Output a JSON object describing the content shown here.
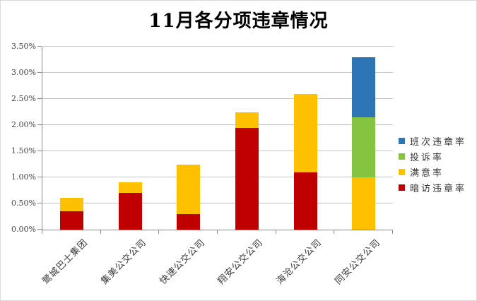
{
  "title": "11月各分项违章情况",
  "chart_data": {
    "type": "bar",
    "stacked": true,
    "title": "11月各分项违章情况",
    "xlabel": "",
    "ylabel": "",
    "grid": true,
    "ylim": [
      0,
      3.5
    ],
    "ytick_step": 0.5,
    "ytick_labels": [
      "0.00%",
      "0.50%",
      "1.00%",
      "1.50%",
      "2.00%",
      "2.50%",
      "3.00%",
      "3.50%"
    ],
    "categories": [
      "鹭城巴士集团",
      "集美公交公司",
      "快速公交公司",
      "翔安公交公司",
      "海沧公交公司",
      "同安公交公司"
    ],
    "series": [
      {
        "name": "暗访违章率",
        "color": "#C00000",
        "values": [
          0.35,
          0.7,
          0.3,
          1.95,
          1.1,
          0
        ]
      },
      {
        "name": "满意率",
        "color": "#FFC000",
        "values": [
          0.25,
          0.2,
          0.95,
          0.3,
          1.5,
          1.0
        ]
      },
      {
        "name": "投诉率",
        "color": "#84C440",
        "values": [
          0,
          0,
          0,
          0,
          0,
          1.15
        ]
      },
      {
        "name": "班次违章率",
        "color": "#2E75B6",
        "values": [
          0,
          0,
          0,
          0,
          0,
          1.15
        ]
      }
    ],
    "totals": [
      0.6,
      0.9,
      1.25,
      2.25,
      2.6,
      3.3
    ],
    "legend": [
      "班次违章率",
      "投诉率",
      "满意率",
      "暗访违章率"
    ],
    "legend_position": "right"
  },
  "colors": {
    "gridline": "#c3c3c3",
    "axis": "#898989",
    "frame_border": "#d9d9d9",
    "title_text": "#000000",
    "tick_text": "#444444"
  }
}
